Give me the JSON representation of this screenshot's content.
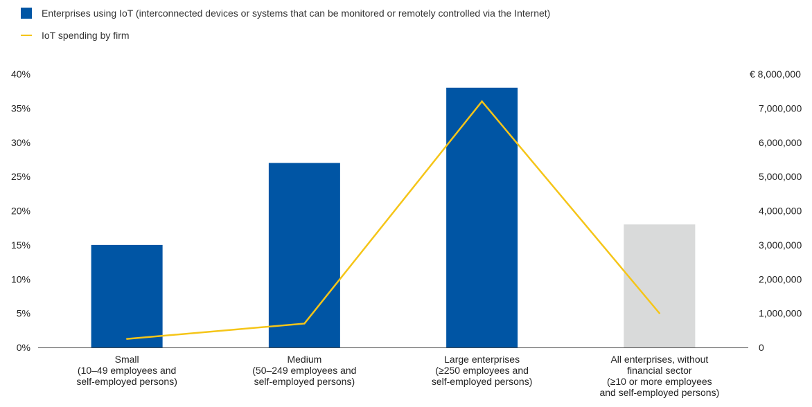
{
  "chart_data": {
    "type": "bar",
    "categories": [
      [
        "Small",
        "(10–49 employees and",
        "self-employed persons)"
      ],
      [
        "Medium",
        "(50–249 employees and",
        "self-employed persons)"
      ],
      [
        "Large enterprises",
        "(≥250 employees and",
        "self-employed persons)"
      ],
      [
        "All enterprises, without",
        "financial sector",
        "(≥10 or more employees",
        "and self-employed persons)"
      ]
    ],
    "series": [
      {
        "name": "Enterprises using IoT (interconnected devices or systems that can be monitored or remotely controlled via the Internet)",
        "type": "bar",
        "axis": "left",
        "values": [
          15,
          27,
          38,
          18
        ],
        "colors": [
          "#0055a4",
          "#0055a4",
          "#0055a4",
          "#d9dada"
        ]
      },
      {
        "name": "IoT spending by firm",
        "type": "line",
        "axis": "right",
        "values": [
          250000,
          700000,
          7200000,
          1000000
        ],
        "color": "#f5c518"
      }
    ],
    "left_axis": {
      "ticks": [
        "0%",
        "5%",
        "10%",
        "15%",
        "20%",
        "25%",
        "30%",
        "35%",
        "40%"
      ],
      "ylim": [
        0,
        40
      ]
    },
    "right_axis": {
      "ticks": [
        "0",
        "1,000,000",
        "2,000,000",
        "3,000,000",
        "4,000,000",
        "5,000,000",
        "6,000,000",
        "7,000,000",
        "€ 8,000,000"
      ],
      "ylim": [
        0,
        8000000
      ]
    },
    "legend_position": "top-left",
    "grid": false
  }
}
